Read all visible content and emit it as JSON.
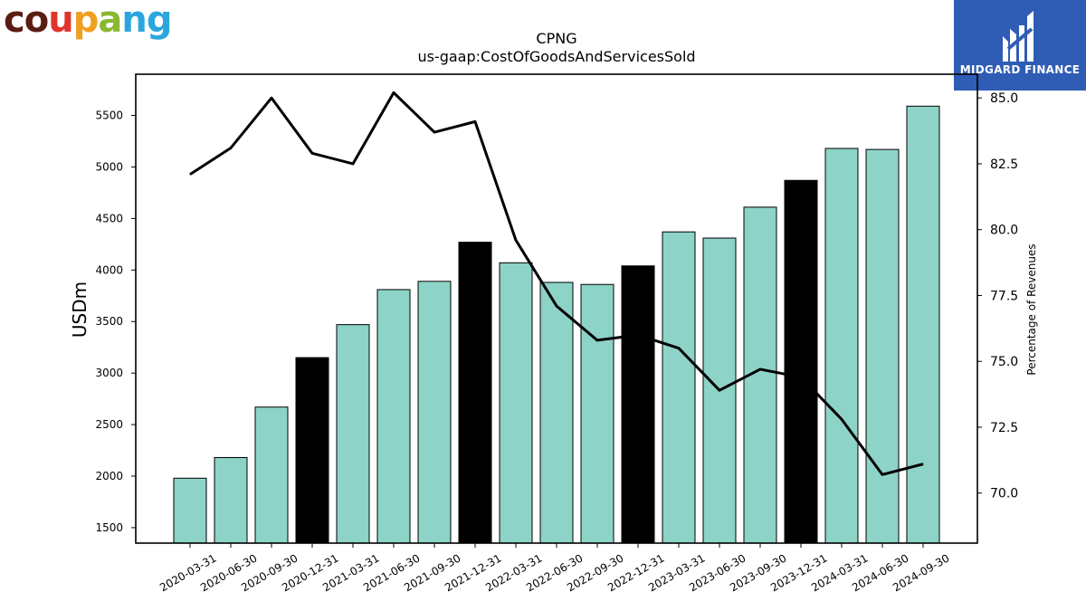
{
  "brand": {
    "left_logo_text": "coupang",
    "left_logo_colors": [
      "#5a1d12",
      "#5a1d12",
      "#e0352b",
      "#f0a020",
      "#8ab832",
      "#2aa6dc",
      "#2aa6dc"
    ],
    "right_logo_text": "MIDGARD FINANCE",
    "right_logo_bg": "#2f5db5"
  },
  "chart_data": {
    "type": "bar",
    "title": "CPNG",
    "subtitle": "us-gaap:CostOfGoodsAndServicesSold",
    "ylabel": "USDm",
    "y2label": "Percentage of Revenues",
    "categories": [
      "2020-03-31",
      "2020-06-30",
      "2020-09-30",
      "2020-12-31",
      "2021-03-31",
      "2021-06-30",
      "2021-09-30",
      "2021-12-31",
      "2022-03-31",
      "2022-06-30",
      "2022-09-30",
      "2022-12-31",
      "2023-03-31",
      "2023-06-30",
      "2023-09-30",
      "2023-12-31",
      "2024-03-31",
      "2024-06-30",
      "2024-09-30"
    ],
    "bar_values": [
      1980,
      2180,
      2670,
      3150,
      3470,
      3810,
      3890,
      4270,
      4070,
      3880,
      3860,
      4040,
      4370,
      4310,
      4610,
      4870,
      5180,
      5170,
      5590
    ],
    "bar_colors": [
      "#8dd3c7",
      "#8dd3c7",
      "#8dd3c7",
      "#000000",
      "#8dd3c7",
      "#8dd3c7",
      "#8dd3c7",
      "#000000",
      "#8dd3c7",
      "#8dd3c7",
      "#8dd3c7",
      "#000000",
      "#8dd3c7",
      "#8dd3c7",
      "#8dd3c7",
      "#000000",
      "#8dd3c7",
      "#8dd3c7",
      "#8dd3c7"
    ],
    "line_values": [
      82.1,
      83.1,
      85.0,
      82.9,
      82.5,
      85.2,
      83.7,
      84.1,
      79.6,
      77.1,
      75.8,
      76.0,
      75.5,
      73.9,
      74.7,
      74.4,
      72.8,
      70.7,
      71.1
    ],
    "ylim": [
      1350,
      5900
    ],
    "y_ticks": [
      "1500",
      "2000",
      "2500",
      "3000",
      "3500",
      "4000",
      "4500",
      "5000",
      "5500"
    ],
    "y2lim": [
      68.1,
      85.9
    ],
    "y2_ticks": [
      "70.0",
      "72.5",
      "75.0",
      "77.5",
      "80.0",
      "82.5",
      "85.0"
    ],
    "grid": false
  }
}
